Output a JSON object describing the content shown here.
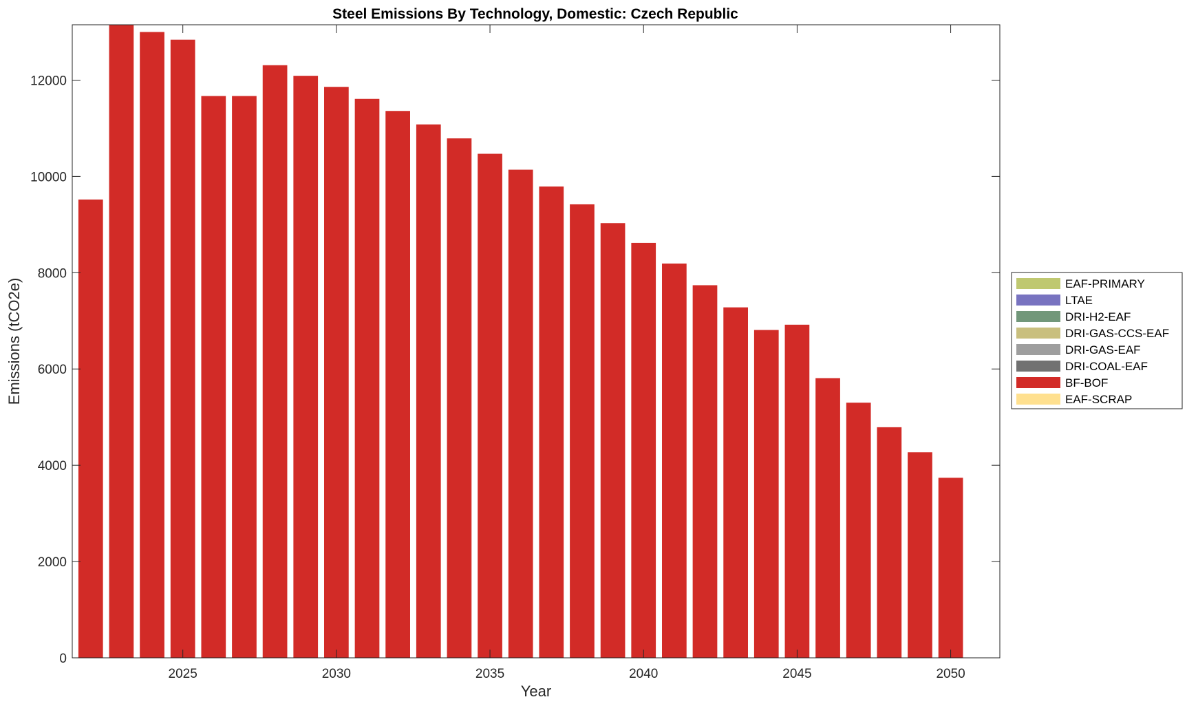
{
  "chart_data": {
    "type": "bar",
    "stacked": true,
    "title": "Steel Emissions By Technology, Domestic: Czech Republic",
    "xlabel": "Year",
    "ylabel": "Emissions (tCO2e)",
    "xlim": [
      2021.4,
      2051.6
    ],
    "ylim": [
      0,
      13150
    ],
    "x_ticks": [
      2025,
      2030,
      2035,
      2040,
      2045,
      2050
    ],
    "y_ticks": [
      0,
      2000,
      4000,
      6000,
      8000,
      10000,
      12000
    ],
    "grid": false,
    "legend_position": "right",
    "categories": [
      2022,
      2023,
      2024,
      2025,
      2026,
      2027,
      2028,
      2029,
      2030,
      2031,
      2032,
      2033,
      2034,
      2035,
      2036,
      2037,
      2038,
      2039,
      2040,
      2041,
      2042,
      2043,
      2044,
      2045,
      2046,
      2047,
      2048,
      2049,
      2050
    ],
    "series": [
      {
        "name": "EAF-PRIMARY",
        "color": "#bfc870",
        "values": [
          0,
          0,
          0,
          0,
          0,
          0,
          0,
          0,
          0,
          0,
          0,
          0,
          0,
          0,
          0,
          0,
          0,
          0,
          0,
          0,
          0,
          0,
          0,
          0,
          0,
          0,
          0,
          0,
          0
        ]
      },
      {
        "name": "LTAE",
        "color": "#7873c0",
        "values": [
          0,
          0,
          0,
          0,
          0,
          0,
          0,
          0,
          0,
          0,
          0,
          0,
          0,
          0,
          0,
          0,
          0,
          0,
          0,
          0,
          0,
          0,
          0,
          0,
          0,
          0,
          0,
          0,
          0
        ]
      },
      {
        "name": "DRI-H2-EAF",
        "color": "#72977a",
        "values": [
          0,
          0,
          0,
          0,
          0,
          0,
          0,
          0,
          0,
          0,
          0,
          0,
          0,
          0,
          0,
          0,
          0,
          0,
          0,
          0,
          0,
          0,
          0,
          0,
          0,
          0,
          0,
          0,
          0
        ]
      },
      {
        "name": "DRI-GAS-CCS-EAF",
        "color": "#c9bf7e",
        "values": [
          0,
          0,
          0,
          0,
          0,
          0,
          0,
          0,
          0,
          0,
          0,
          0,
          0,
          0,
          0,
          0,
          0,
          0,
          0,
          0,
          0,
          0,
          0,
          0,
          0,
          0,
          0,
          0,
          0
        ]
      },
      {
        "name": "DRI-GAS-EAF",
        "color": "#9e9e9e",
        "values": [
          0,
          0,
          0,
          0,
          0,
          0,
          0,
          0,
          0,
          0,
          0,
          0,
          0,
          0,
          0,
          0,
          0,
          0,
          0,
          0,
          0,
          0,
          0,
          0,
          0,
          0,
          0,
          0,
          0
        ]
      },
      {
        "name": "DRI-COAL-EAF",
        "color": "#717171",
        "values": [
          0,
          0,
          0,
          0,
          0,
          0,
          0,
          0,
          0,
          0,
          0,
          0,
          0,
          0,
          0,
          0,
          0,
          0,
          0,
          0,
          0,
          0,
          0,
          0,
          0,
          0,
          0,
          0,
          0
        ]
      },
      {
        "name": "BF-BOF",
        "color": "#d22b27",
        "values": [
          9520,
          13150,
          13000,
          12840,
          11670,
          11670,
          12310,
          12090,
          11860,
          11610,
          11360,
          11080,
          10790,
          10470,
          10140,
          9790,
          9420,
          9030,
          8620,
          8190,
          7740,
          7280,
          6810,
          6920,
          5810,
          5300,
          4790,
          4270,
          3740
        ]
      },
      {
        "name": "EAF-SCRAP",
        "color": "#ffe08f",
        "values": [
          0,
          0,
          0,
          0,
          0,
          0,
          0,
          0,
          0,
          0,
          0,
          0,
          0,
          0,
          0,
          0,
          0,
          0,
          0,
          0,
          0,
          0,
          0,
          0,
          0,
          0,
          0,
          0,
          0
        ]
      }
    ]
  }
}
